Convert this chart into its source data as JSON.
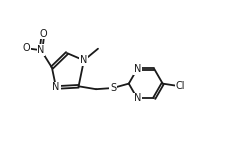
{
  "bg_color": "#ffffff",
  "line_color": "#1a1a1a",
  "label_color": "#1a1a1a",
  "lw": 1.3,
  "font_size": 7.0,
  "fig_width": 2.43,
  "fig_height": 1.59,
  "dpi": 100,
  "xlim": [
    0,
    10
  ],
  "ylim": [
    0,
    6.56
  ]
}
